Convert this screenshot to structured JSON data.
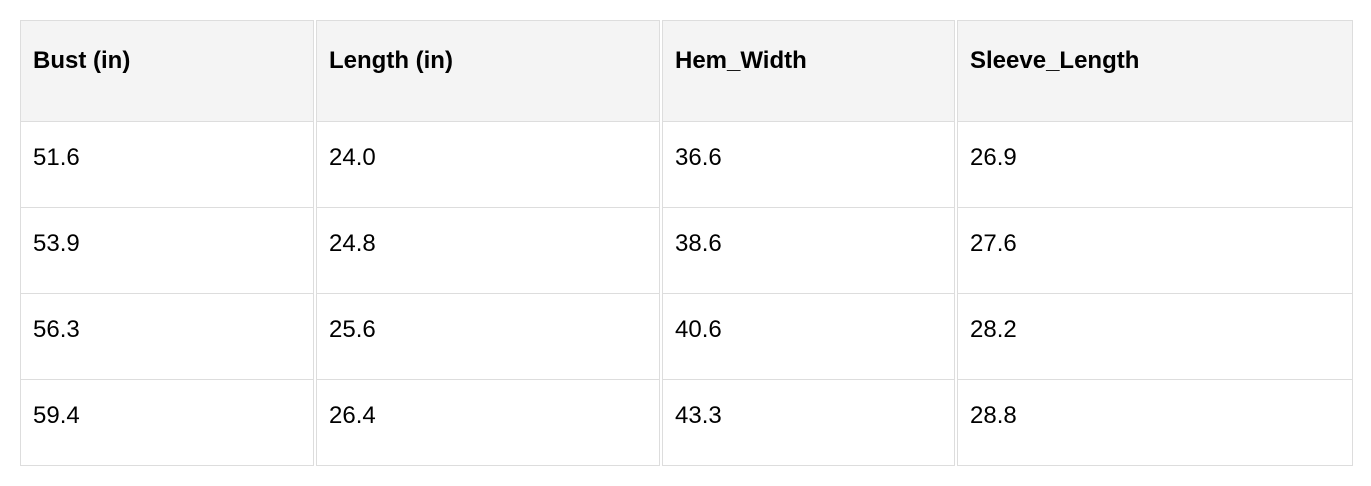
{
  "table": {
    "headers": [
      "Bust (in)",
      "Length (in)",
      "Hem_Width",
      "Sleeve_Length"
    ],
    "rows": [
      [
        "51.6",
        "24.0",
        "36.6",
        "26.9"
      ],
      [
        "53.9",
        "24.8",
        "38.6",
        "27.6"
      ],
      [
        "56.3",
        "25.6",
        "40.6",
        "28.2"
      ],
      [
        "59.4",
        "26.4",
        "43.3",
        "28.8"
      ]
    ]
  }
}
